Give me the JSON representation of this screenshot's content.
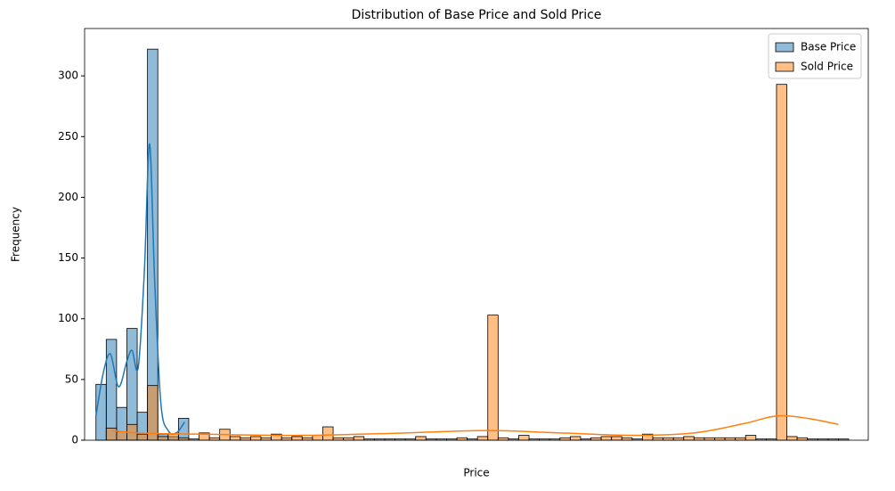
{
  "chart_data": {
    "type": "histogram",
    "title": "Distribution of Base Price and Sold Price",
    "xlabel": "Price",
    "ylabel": "Frequency",
    "bins": [
      0,
      1,
      2,
      3,
      4,
      5,
      6,
      7,
      8,
      9,
      10,
      11,
      12,
      13,
      14,
      15,
      16,
      17,
      18,
      19,
      20,
      21,
      22,
      23,
      24,
      25,
      26,
      27,
      28,
      29,
      30,
      31,
      32,
      33,
      34,
      35,
      36,
      37,
      38,
      39,
      40,
      41,
      42,
      43,
      44,
      45,
      46,
      47,
      48,
      49,
      50,
      51,
      52,
      53,
      54,
      55,
      56,
      57,
      58,
      59,
      60,
      61,
      62,
      63,
      64,
      65,
      66,
      67,
      68,
      69,
      70,
      71,
      72,
      73
    ],
    "xlim": [
      -1.1,
      74.9
    ],
    "ylim": [
      0,
      339
    ],
    "yticks": [
      0,
      50,
      100,
      150,
      200,
      250,
      300
    ],
    "legend": "upper right",
    "series": [
      {
        "name": "Base Price",
        "color": "#1f77b4",
        "values": [
          46,
          83,
          27,
          92,
          23,
          322,
          5,
          3,
          18,
          0,
          0,
          0,
          0,
          0,
          0,
          0,
          0,
          0,
          0,
          0,
          0,
          0,
          0,
          0,
          0,
          0,
          0,
          0,
          0,
          0,
          0,
          0,
          0,
          0,
          0,
          0,
          0,
          0,
          0,
          0,
          0,
          0,
          0,
          0,
          0,
          0,
          0,
          0,
          0,
          0,
          0,
          0,
          0,
          0,
          0,
          0,
          0,
          0,
          0,
          0,
          0,
          0,
          0,
          0,
          0,
          0,
          0,
          0,
          0,
          0,
          0,
          0,
          0
        ],
        "kde": {
          "x": [
            0,
            0.7,
            1.4,
            2.2,
            3,
            3.5,
            4.1,
            4.7,
            5.2,
            5.7,
            6.3,
            7,
            7.8,
            8.6
          ],
          "y": [
            20,
            55,
            71,
            44,
            65,
            74,
            60,
            140,
            244,
            130,
            30,
            8,
            6,
            15
          ]
        }
      },
      {
        "name": "Sold Price",
        "color": "#ff7f0e",
        "values": [
          0,
          10,
          7,
          13,
          5,
          45,
          3,
          5,
          2,
          1,
          6,
          2,
          9,
          3,
          2,
          3,
          2,
          5,
          2,
          3,
          2,
          4,
          11,
          2,
          2,
          3,
          1,
          1,
          1,
          1,
          1,
          3,
          1,
          1,
          1,
          2,
          1,
          3,
          103,
          2,
          1,
          4,
          1,
          1,
          1,
          2,
          3,
          1,
          2,
          3,
          3,
          2,
          1,
          5,
          2,
          2,
          2,
          3,
          2,
          2,
          2,
          2,
          2,
          4,
          1,
          1,
          293,
          3,
          2,
          1,
          1,
          1,
          1
        ],
        "kde": {
          "x": [
            1.5,
            4,
            10,
            20,
            30,
            38,
            45,
            52,
            58,
            63,
            66,
            69,
            72
          ],
          "y": [
            8,
            6,
            5,
            4,
            6,
            8,
            6,
            4,
            6,
            14,
            20,
            18,
            13
          ]
        }
      }
    ]
  }
}
